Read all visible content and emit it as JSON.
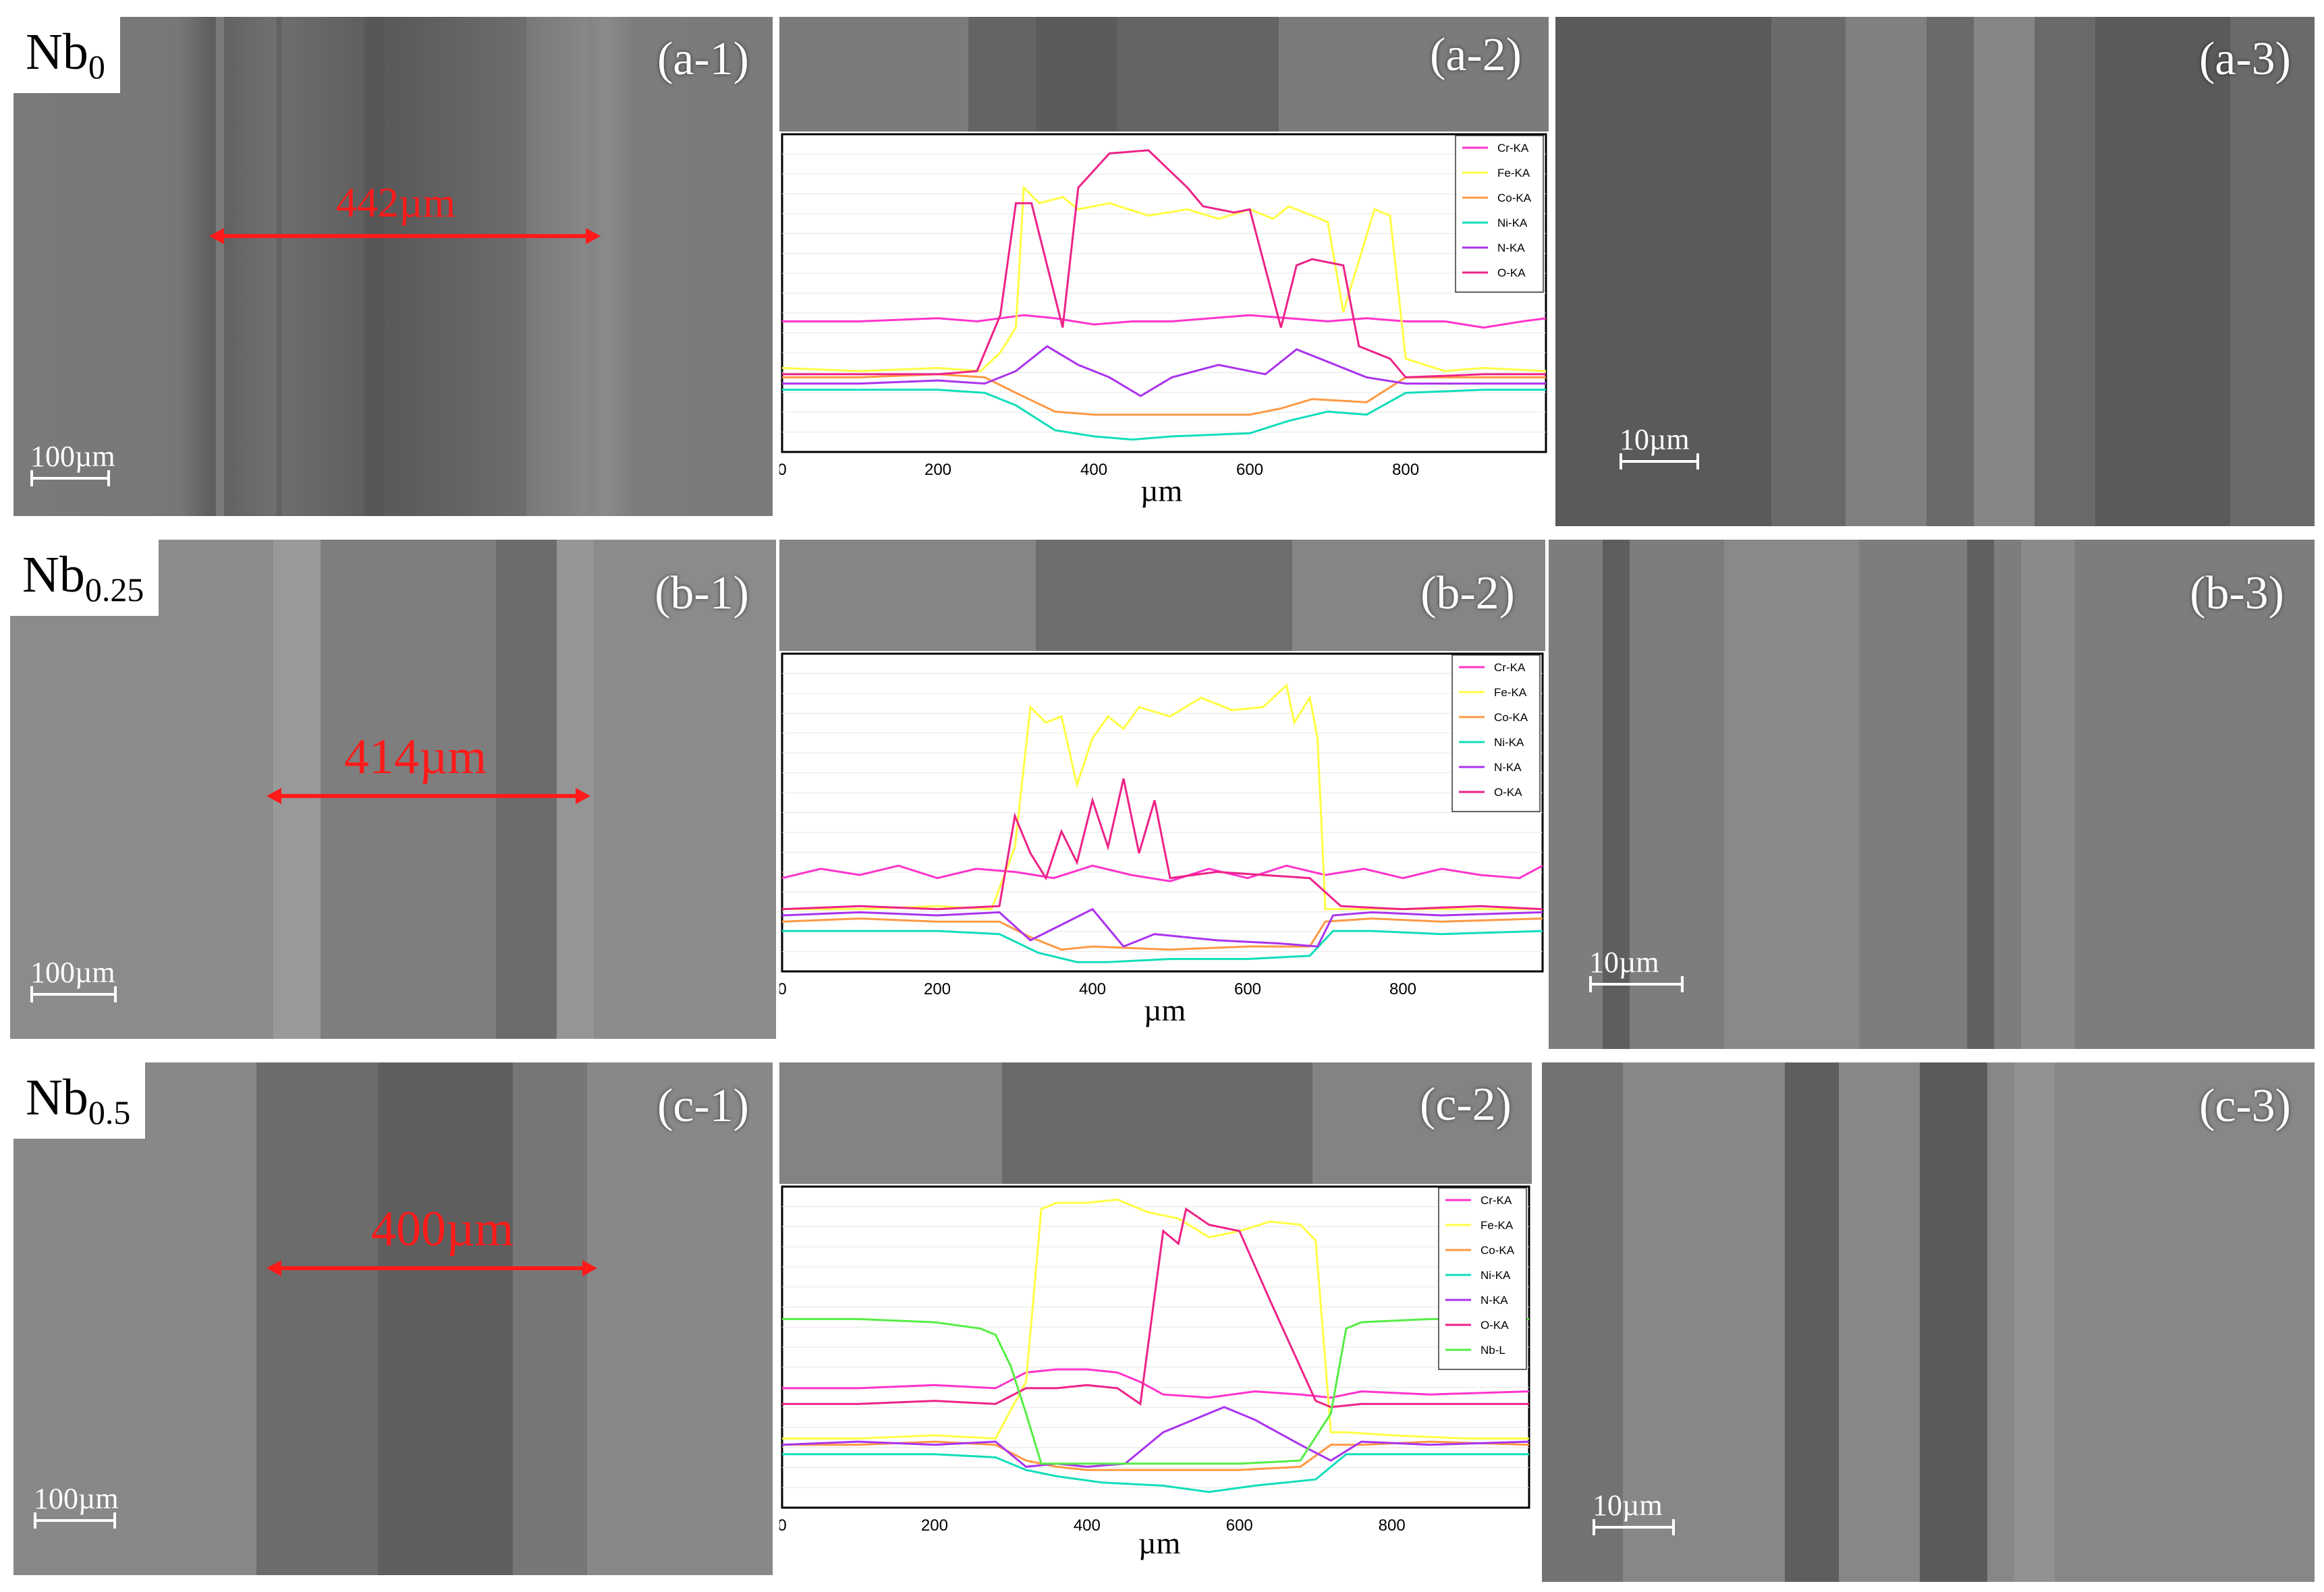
{
  "rows": [
    {
      "composition": {
        "base": "Nb",
        "sub": "0"
      },
      "labels": [
        "(a-1)",
        "(a-2)",
        "(a-3)"
      ],
      "wear_width": "442µm",
      "scale_low": "100µm",
      "scale_high": "10µm",
      "chart_xlabel": "µm"
    },
    {
      "composition": {
        "base": "Nb",
        "sub": "0.25"
      },
      "labels": [
        "(b-1)",
        "(b-2)",
        "(b-3)"
      ],
      "wear_width": "414µm",
      "scale_low": "100µm",
      "scale_high": "10µm",
      "chart_xlabel": "µm"
    },
    {
      "composition": {
        "base": "Nb",
        "sub": "0.5"
      },
      "labels": [
        "(c-1)",
        "(c-2)",
        "(c-3)"
      ],
      "wear_width": "400µm",
      "scale_low": "100µm",
      "scale_high": "10µm",
      "chart_xlabel": "µm"
    }
  ],
  "colors": {
    "Cr-KA": "#ff33cc",
    "Fe-KA": "#ffff44",
    "Co-KA": "#ff9944",
    "Ni-KA": "#11ddbb",
    "N-KA": "#aa33ee",
    "O-KA": "#ee2288",
    "Nb-L": "#55ee44"
  },
  "chart_data": [
    {
      "type": "line",
      "xlabel": "µm",
      "xlim": [
        0,
        980
      ],
      "x_ticks": [
        "0",
        "200",
        "400",
        "600",
        "800"
      ],
      "series": [
        {
          "name": "Cr-KA",
          "x": [
            0,
            100,
            200,
            250,
            280,
            310,
            350,
            400,
            450,
            500,
            550,
            600,
            650,
            700,
            750,
            800,
            850,
            900,
            950,
            980
          ],
          "y": [
            42,
            42,
            43,
            42,
            43,
            44,
            43,
            41,
            42,
            42,
            43,
            44,
            43,
            42,
            43,
            42,
            42,
            40,
            42,
            43
          ]
        },
        {
          "name": "Fe-KA",
          "x": [
            0,
            100,
            200,
            255,
            280,
            300,
            310,
            330,
            360,
            380,
            420,
            470,
            520,
            560,
            600,
            630,
            650,
            700,
            720,
            760,
            780,
            800,
            850,
            900,
            980
          ],
          "y": [
            27,
            26,
            27,
            26,
            32,
            40,
            85,
            80,
            82,
            78,
            80,
            76,
            78,
            75,
            78,
            75,
            79,
            74,
            45,
            78,
            76,
            30,
            26,
            27,
            26
          ]
        },
        {
          "name": "Co-KA",
          "x": [
            0,
            100,
            200,
            260,
            300,
            350,
            400,
            500,
            600,
            640,
            680,
            750,
            800,
            900,
            980
          ],
          "y": [
            24,
            24,
            25,
            24,
            19,
            13,
            12,
            12,
            12,
            14,
            17,
            16,
            24,
            24,
            24
          ]
        },
        {
          "name": "Ni-KA",
          "x": [
            0,
            100,
            200,
            260,
            300,
            350,
            400,
            450,
            500,
            600,
            650,
            700,
            750,
            800,
            900,
            980
          ],
          "y": [
            20,
            20,
            20,
            19,
            15,
            7,
            5,
            4,
            5,
            6,
            10,
            13,
            12,
            19,
            20,
            20
          ]
        },
        {
          "name": "N-KA",
          "x": [
            0,
            100,
            200,
            260,
            300,
            340,
            380,
            420,
            460,
            500,
            560,
            620,
            660,
            700,
            750,
            800,
            900,
            980
          ],
          "y": [
            22,
            22,
            23,
            22,
            26,
            34,
            28,
            24,
            18,
            24,
            28,
            25,
            33,
            29,
            24,
            22,
            22,
            22
          ]
        },
        {
          "name": "O-KA",
          "x": [
            0,
            100,
            200,
            250,
            280,
            300,
            320,
            360,
            380,
            420,
            470,
            520,
            540,
            580,
            600,
            640,
            660,
            680,
            720,
            740,
            780,
            800,
            900,
            980
          ],
          "y": [
            25,
            25,
            25,
            26,
            44,
            80,
            80,
            40,
            85,
            96,
            97,
            85,
            79,
            77,
            78,
            40,
            60,
            62,
            60,
            34,
            30,
            24,
            25,
            25
          ]
        }
      ]
    },
    {
      "type": "line",
      "xlabel": "µm",
      "xlim": [
        0,
        980
      ],
      "x_ticks": [
        "0",
        "200",
        "400",
        "600",
        "800"
      ],
      "series": [
        {
          "name": "Cr-KA",
          "x": [
            0,
            50,
            100,
            150,
            200,
            250,
            300,
            350,
            400,
            450,
            500,
            550,
            600,
            650,
            700,
            750,
            800,
            850,
            900,
            950,
            980
          ],
          "y": [
            30,
            33,
            31,
            34,
            30,
            33,
            32,
            30,
            34,
            31,
            29,
            33,
            30,
            34,
            31,
            33,
            30,
            33,
            31,
            30,
            34
          ]
        },
        {
          "name": "Fe-KA",
          "x": [
            0,
            100,
            200,
            270,
            300,
            320,
            340,
            360,
            380,
            400,
            420,
            440,
            460,
            500,
            540,
            580,
            620,
            650,
            660,
            680,
            690,
            700,
            710,
            750,
            850,
            980
          ],
          "y": [
            20,
            20,
            21,
            20,
            40,
            85,
            80,
            82,
            60,
            75,
            82,
            78,
            85,
            82,
            88,
            84,
            85,
            92,
            80,
            88,
            75,
            20,
            20,
            20,
            20,
            20
          ]
        },
        {
          "name": "Co-KA",
          "x": [
            0,
            100,
            200,
            280,
            320,
            360,
            400,
            500,
            600,
            680,
            700,
            760,
            850,
            980
          ],
          "y": [
            16,
            17,
            16,
            16,
            11,
            7,
            8,
            7,
            8,
            8,
            16,
            17,
            16,
            17
          ]
        },
        {
          "name": "Ni-KA",
          "x": [
            0,
            100,
            200,
            280,
            330,
            380,
            420,
            500,
            600,
            680,
            710,
            760,
            850,
            980
          ],
          "y": [
            13,
            13,
            13,
            12,
            6,
            3,
            3,
            4,
            4,
            5,
            13,
            13,
            12,
            13
          ]
        },
        {
          "name": "N-KA",
          "x": [
            0,
            100,
            200,
            280,
            320,
            360,
            400,
            440,
            480,
            560,
            640,
            690,
            710,
            760,
            850,
            980
          ],
          "y": [
            18,
            19,
            18,
            19,
            10,
            15,
            20,
            8,
            12,
            10,
            9,
            8,
            18,
            19,
            18,
            19
          ]
        },
        {
          "name": "O-KA",
          "x": [
            0,
            100,
            200,
            280,
            300,
            320,
            340,
            360,
            380,
            400,
            420,
            440,
            460,
            480,
            500,
            560,
            620,
            680,
            720,
            800,
            900,
            980
          ],
          "y": [
            20,
            21,
            20,
            21,
            50,
            38,
            30,
            45,
            35,
            55,
            40,
            62,
            38,
            55,
            30,
            32,
            31,
            30,
            21,
            20,
            21,
            20
          ]
        }
      ]
    },
    {
      "type": "line",
      "xlabel": "µm",
      "xlim": [
        0,
        980
      ],
      "x_ticks": [
        "0",
        "200",
        "400",
        "600",
        "800"
      ],
      "series": [
        {
          "name": "Cr-KA",
          "x": [
            0,
            100,
            200,
            280,
            320,
            360,
            400,
            440,
            470,
            500,
            560,
            620,
            680,
            720,
            760,
            850,
            980
          ],
          "y": [
            38,
            38,
            39,
            38,
            43,
            44,
            44,
            43,
            40,
            36,
            35,
            37,
            36,
            35,
            37,
            36,
            37
          ]
        },
        {
          "name": "Fe-KA",
          "x": [
            0,
            100,
            200,
            280,
            320,
            340,
            360,
            400,
            440,
            480,
            520,
            560,
            600,
            640,
            680,
            700,
            720,
            740,
            800,
            900,
            980
          ],
          "y": [
            22,
            22,
            23,
            22,
            40,
            95,
            97,
            97,
            98,
            94,
            92,
            86,
            88,
            91,
            90,
            85,
            24,
            24,
            23,
            22,
            22
          ]
        },
        {
          "name": "Co-KA",
          "x": [
            0,
            100,
            200,
            280,
            320,
            360,
            400,
            500,
            600,
            680,
            720,
            760,
            850,
            980
          ],
          "y": [
            20,
            20,
            21,
            20,
            15,
            13,
            12,
            12,
            12,
            13,
            20,
            20,
            21,
            20
          ]
        },
        {
          "name": "Ni-KA",
          "x": [
            0,
            100,
            200,
            280,
            320,
            360,
            420,
            500,
            560,
            620,
            700,
            740,
            850,
            980
          ],
          "y": [
            17,
            17,
            17,
            16,
            12,
            10,
            8,
            7,
            5,
            7,
            9,
            17,
            17,
            17
          ]
        },
        {
          "name": "N-KA",
          "x": [
            0,
            100,
            200,
            280,
            320,
            360,
            400,
            450,
            500,
            540,
            580,
            620,
            680,
            720,
            760,
            850,
            980
          ],
          "y": [
            20,
            21,
            20,
            21,
            13,
            14,
            13,
            14,
            24,
            28,
            32,
            28,
            20,
            15,
            21,
            20,
            21
          ]
        },
        {
          "name": "O-KA",
          "x": [
            0,
            100,
            200,
            280,
            320,
            360,
            400,
            440,
            470,
            500,
            520,
            530,
            560,
            600,
            640,
            700,
            720,
            760,
            850,
            980
          ],
          "y": [
            33,
            33,
            34,
            33,
            38,
            38,
            39,
            38,
            33,
            88,
            84,
            95,
            90,
            88,
            66,
            34,
            32,
            33,
            33,
            33
          ]
        },
        {
          "name": "Nb-L",
          "x": [
            0,
            100,
            200,
            260,
            280,
            300,
            320,
            340,
            400,
            500,
            600,
            680,
            720,
            740,
            760,
            850,
            980
          ],
          "y": [
            60,
            60,
            59,
            57,
            55,
            45,
            30,
            14,
            14,
            14,
            14,
            15,
            30,
            57,
            59,
            60,
            60
          ]
        }
      ]
    }
  ]
}
